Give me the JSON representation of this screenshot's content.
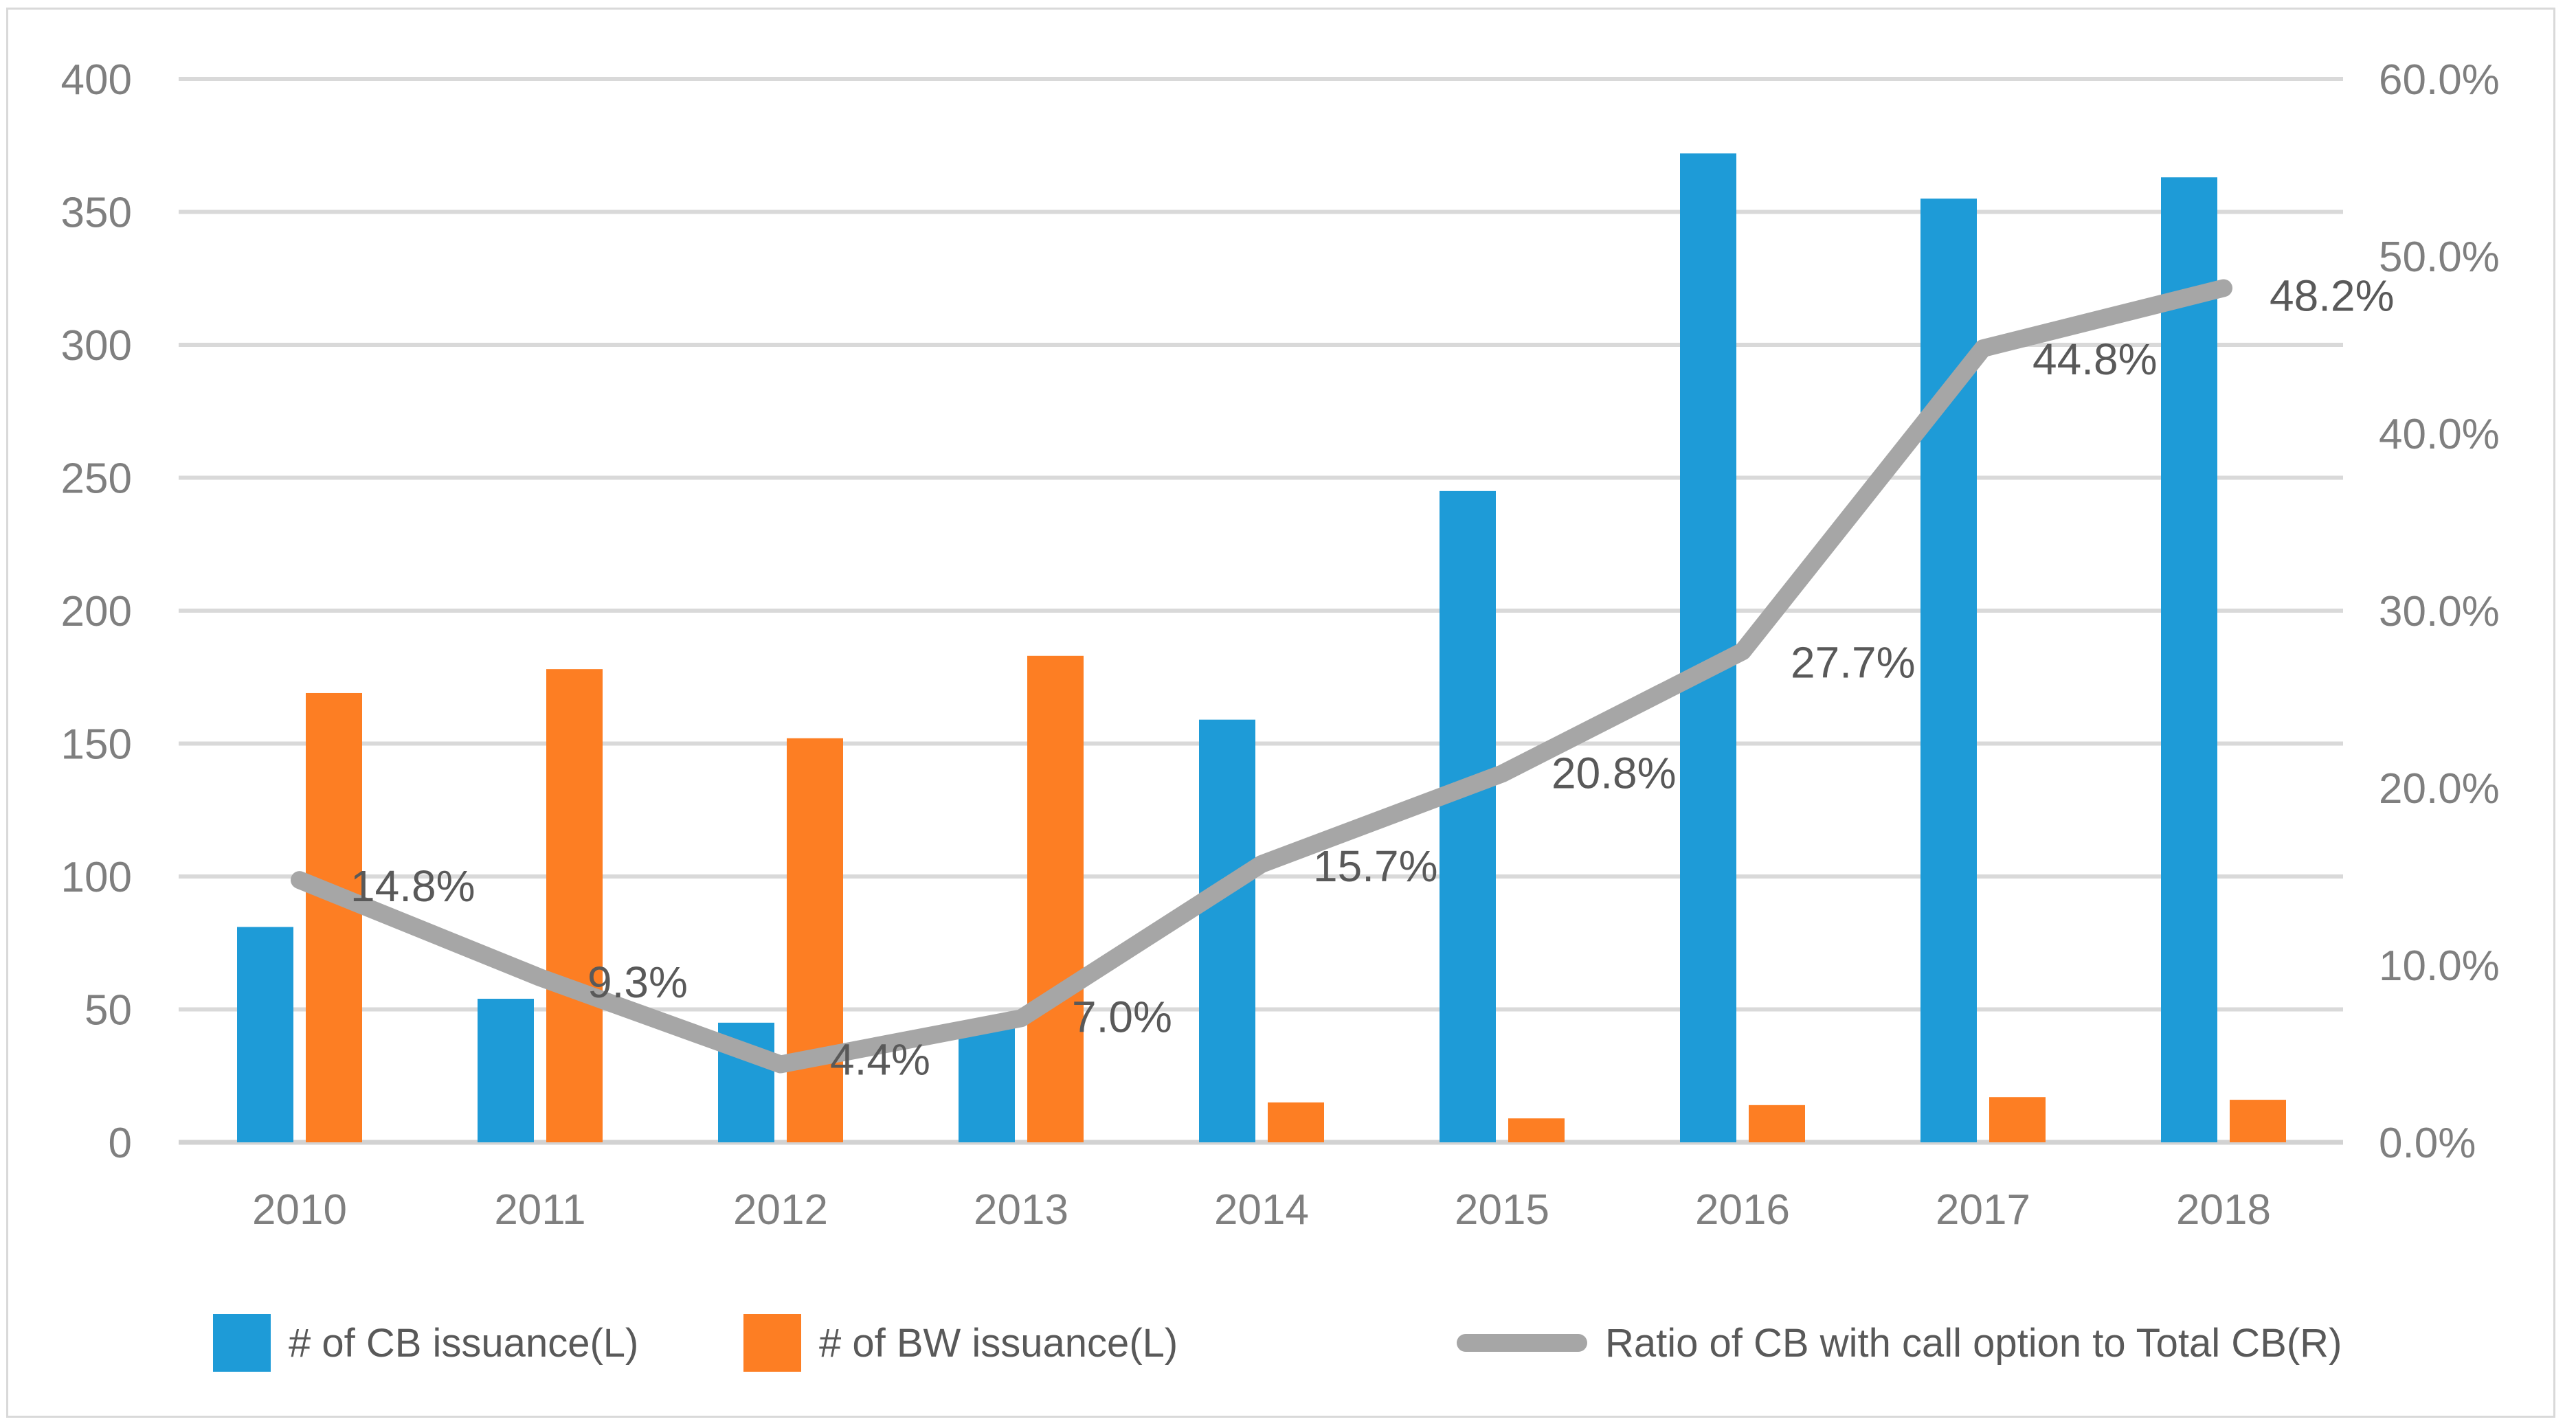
{
  "chart_data": {
    "type": "bar+line",
    "title": "",
    "categories": [
      "2010",
      "2011",
      "2012",
      "2013",
      "2014",
      "2015",
      "2016",
      "2017",
      "2018"
    ],
    "series": [
      {
        "name": "# of CB issuance(L)",
        "type": "bar",
        "axis": "left",
        "color": "#1E9BD7",
        "values": [
          81,
          54,
          45,
          43,
          159,
          245,
          372,
          355,
          363
        ]
      },
      {
        "name": "# of BW issuance(L)",
        "type": "bar",
        "axis": "left",
        "color": "#FD7E23",
        "values": [
          169,
          178,
          152,
          183,
          15,
          9,
          14,
          17,
          16
        ]
      },
      {
        "name": "Ratio of CB with call option to Total CB(R)",
        "type": "line",
        "axis": "right",
        "color": "#A6A6A6",
        "values": [
          14.8,
          9.3,
          4.4,
          7.0,
          15.7,
          20.8,
          27.7,
          44.8,
          48.2
        ],
        "point_labels": [
          "14.8%",
          "9.3%",
          "4.4%",
          "7.0%",
          "15.7%",
          "20.8%",
          "27.7%",
          "44.8%",
          "48.2%"
        ]
      }
    ],
    "left_axis": {
      "min": 0,
      "max": 400,
      "step": 50,
      "ticks": [
        "0",
        "50",
        "100",
        "150",
        "200",
        "250",
        "300",
        "350",
        "400"
      ]
    },
    "right_axis": {
      "min": 0,
      "max": 60,
      "step": 10,
      "ticks": [
        "0.0%",
        "10.0%",
        "20.0%",
        "30.0%",
        "40.0%",
        "50.0%",
        "60.0%"
      ]
    },
    "grid": true,
    "legend_position": "bottom"
  },
  "colors": {
    "background": "#ffffff",
    "border": "#d9d9d9",
    "gridline": "#d9d9d9",
    "zero_line": "#d2d2d2",
    "axis_text": "#7f7f7f",
    "data_label_text": "#595959",
    "bar_blue": "#1E9BD7",
    "bar_orange": "#FD7E23",
    "line_gray": "#A6A6A6"
  }
}
